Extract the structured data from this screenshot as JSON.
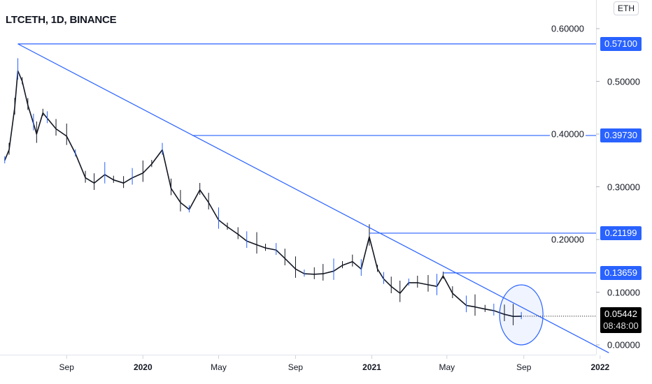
{
  "header": {
    "title": "LTCETH, 1D, BINANCE",
    "currency": "ETH"
  },
  "chart_data": {
    "type": "line",
    "title": "LTCETH, 1D, BINANCE",
    "ylim": [
      0,
      0.6
    ],
    "yticks": [
      "0.00000",
      "0.10000",
      "0.20000",
      "0.30000",
      "0.40000",
      "0.50000",
      "0.60000"
    ],
    "ytick_values": [
      0,
      0.1,
      0.2,
      0.3,
      0.4,
      0.5,
      0.6
    ],
    "xticks": [
      {
        "label": "Sep",
        "date": "2019-09-01",
        "year": false
      },
      {
        "label": "2020",
        "date": "2020-01-01",
        "year": true
      },
      {
        "label": "May",
        "date": "2020-05-01",
        "year": false
      },
      {
        "label": "Sep",
        "date": "2020-09-01",
        "year": false
      },
      {
        "label": "2021",
        "date": "2021-01-01",
        "year": true
      },
      {
        "label": "May",
        "date": "2021-05-01",
        "year": false
      },
      {
        "label": "Sep",
        "date": "2021-09-01",
        "year": false
      },
      {
        "label": "2022",
        "date": "2022-01-01",
        "year": true
      }
    ],
    "series": [
      {
        "name": "LTCETH",
        "points": [
          [
            "2019-05-25",
            0.35
          ],
          [
            "2019-06-01",
            0.37
          ],
          [
            "2019-06-10",
            0.45
          ],
          [
            "2019-06-15",
            0.52
          ],
          [
            "2019-06-22",
            0.5
          ],
          [
            "2019-07-01",
            0.455
          ],
          [
            "2019-07-10",
            0.42
          ],
          [
            "2019-07-15",
            0.4
          ],
          [
            "2019-07-25",
            0.44
          ],
          [
            "2019-08-01",
            0.43
          ],
          [
            "2019-08-15",
            0.41
          ],
          [
            "2019-09-01",
            0.396
          ],
          [
            "2019-09-15",
            0.363
          ],
          [
            "2019-10-01",
            0.317
          ],
          [
            "2019-10-15",
            0.307
          ],
          [
            "2019-11-01",
            0.323
          ],
          [
            "2019-11-15",
            0.313
          ],
          [
            "2019-12-01",
            0.307
          ],
          [
            "2019-12-15",
            0.317
          ],
          [
            "2020-01-01",
            0.326
          ],
          [
            "2020-01-15",
            0.343
          ],
          [
            "2020-02-01",
            0.37
          ],
          [
            "2020-02-15",
            0.297
          ],
          [
            "2020-03-01",
            0.27
          ],
          [
            "2020-03-15",
            0.257
          ],
          [
            "2020-04-01",
            0.294
          ],
          [
            "2020-04-15",
            0.27
          ],
          [
            "2020-05-01",
            0.237
          ],
          [
            "2020-05-15",
            0.224
          ],
          [
            "2020-06-01",
            0.21
          ],
          [
            "2020-06-15",
            0.197
          ],
          [
            "2020-07-01",
            0.19
          ],
          [
            "2020-07-15",
            0.184
          ],
          [
            "2020-08-01",
            0.18
          ],
          [
            "2020-08-15",
            0.164
          ],
          [
            "2020-09-01",
            0.144
          ],
          [
            "2020-09-15",
            0.135
          ],
          [
            "2020-10-01",
            0.134
          ],
          [
            "2020-10-15",
            0.135
          ],
          [
            "2020-11-01",
            0.14
          ],
          [
            "2020-11-15",
            0.151
          ],
          [
            "2020-12-01",
            0.158
          ],
          [
            "2020-12-15",
            0.144
          ],
          [
            "2020-12-28",
            0.205
          ],
          [
            "2021-01-10",
            0.144
          ],
          [
            "2021-01-20",
            0.125
          ],
          [
            "2021-02-01",
            0.111
          ],
          [
            "2021-02-15",
            0.098
          ],
          [
            "2021-03-01",
            0.118
          ],
          [
            "2021-03-15",
            0.118
          ],
          [
            "2021-04-01",
            0.114
          ],
          [
            "2021-04-15",
            0.111
          ],
          [
            "2021-04-25",
            0.131
          ],
          [
            "2021-05-10",
            0.098
          ],
          [
            "2021-06-01",
            0.075
          ],
          [
            "2021-06-15",
            0.072
          ],
          [
            "2021-07-01",
            0.068
          ],
          [
            "2021-07-15",
            0.065
          ],
          [
            "2021-08-01",
            0.058
          ],
          [
            "2021-08-15",
            0.054
          ],
          [
            "2021-08-28",
            0.0544
          ]
        ]
      }
    ],
    "trendline": {
      "from": [
        "2019-06-15",
        0.571
      ],
      "to": [
        "2022-01-15",
        -0.015
      ]
    },
    "levels": [
      {
        "label": "0.57100",
        "value": 0.571,
        "from": "2019-06-15"
      },
      {
        "label": "0.39730",
        "value": 0.3973,
        "from": "2020-03-20"
      },
      {
        "label": "0.21199",
        "value": 0.21199,
        "from": "2020-12-28"
      },
      {
        "label": "0.13659",
        "value": 0.13659,
        "from": "2021-04-25"
      }
    ],
    "highlight": {
      "date": "2021-08-28",
      "value": 0.057
    },
    "last_price": {
      "value": "0.05442",
      "countdown": "08:48:00"
    }
  },
  "colors": {
    "line": "#2962ff",
    "price": "#131722",
    "tag": "#2962ff"
  }
}
